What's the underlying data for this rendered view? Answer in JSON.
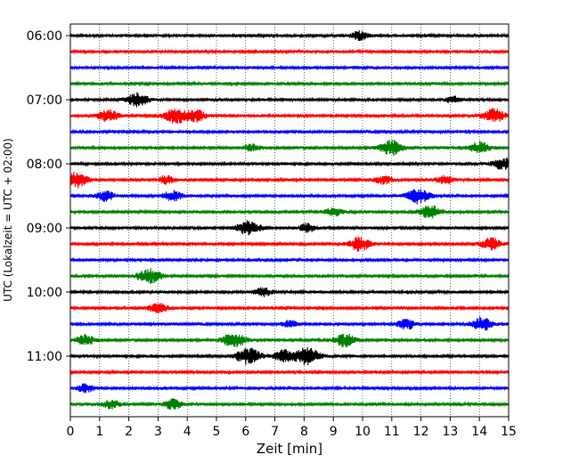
{
  "chart_data": {
    "type": "line",
    "title": "",
    "xlabel": "Zeit  [min]",
    "ylabel": "UTC (Lokalzeit = UTC + 02:00)",
    "xlim": [
      0,
      15
    ],
    "x_ticks": [
      0,
      1,
      2,
      3,
      4,
      5,
      6,
      7,
      8,
      9,
      10,
      11,
      12,
      13,
      14,
      15
    ],
    "x_tick_labels": [
      "0",
      "1",
      "2",
      "3",
      "4",
      "5",
      "6",
      "7",
      "8",
      "9",
      "10",
      "11",
      "12",
      "13",
      "14",
      "15"
    ],
    "y_tick_labels": [
      {
        "label": "06:00",
        "trace_index": 0
      },
      {
        "label": "07:00",
        "trace_index": 4
      },
      {
        "label": "08:00",
        "trace_index": 8
      },
      {
        "label": "09:00",
        "trace_index": 12
      },
      {
        "label": "10:00",
        "trace_index": 16
      },
      {
        "label": "11:00",
        "trace_index": 20
      }
    ],
    "grid": "vertical dotted lines at each minute",
    "trace_minutes": 15,
    "trace_count": 24,
    "colors": [
      "#000000",
      "#ff0000",
      "#0000ff",
      "#008000"
    ],
    "traces": [
      {
        "start": "06:00",
        "color": "#000000",
        "bursts": [
          [
            9.9,
            0.5
          ]
        ]
      },
      {
        "start": "06:15",
        "color": "#ff0000",
        "bursts": []
      },
      {
        "start": "06:30",
        "color": "#0000ff",
        "bursts": []
      },
      {
        "start": "06:45",
        "color": "#008000",
        "bursts": []
      },
      {
        "start": "07:00",
        "color": "#000000",
        "bursts": [
          [
            2.3,
            0.8
          ],
          [
            13.1,
            0.4
          ]
        ]
      },
      {
        "start": "07:15",
        "color": "#ff0000",
        "bursts": [
          [
            1.3,
            0.7
          ],
          [
            3.6,
            0.9
          ],
          [
            4.3,
            0.7
          ],
          [
            14.5,
            0.8
          ]
        ]
      },
      {
        "start": "07:30",
        "color": "#0000ff",
        "bursts": []
      },
      {
        "start": "07:45",
        "color": "#008000",
        "bursts": [
          [
            6.2,
            0.4
          ],
          [
            11.0,
            0.9
          ],
          [
            14.0,
            0.7
          ]
        ]
      },
      {
        "start": "08:00",
        "color": "#000000",
        "bursts": [
          [
            14.8,
            0.7
          ]
        ]
      },
      {
        "start": "08:15",
        "color": "#ff0000",
        "bursts": [
          [
            0.2,
            0.9
          ],
          [
            3.3,
            0.5
          ],
          [
            10.7,
            0.5
          ],
          [
            12.8,
            0.5
          ]
        ]
      },
      {
        "start": "08:30",
        "color": "#0000ff",
        "bursts": [
          [
            1.2,
            0.6
          ],
          [
            3.5,
            0.6
          ],
          [
            11.9,
            0.9
          ]
        ]
      },
      {
        "start": "08:45",
        "color": "#008000",
        "bursts": [
          [
            9.0,
            0.5
          ],
          [
            12.3,
            0.8
          ]
        ]
      },
      {
        "start": "09:00",
        "color": "#000000",
        "bursts": [
          [
            6.1,
            0.9
          ],
          [
            8.1,
            0.5
          ]
        ]
      },
      {
        "start": "09:15",
        "color": "#ff0000",
        "bursts": [
          [
            9.9,
            0.8
          ],
          [
            14.4,
            0.7
          ]
        ]
      },
      {
        "start": "09:30",
        "color": "#0000ff",
        "bursts": []
      },
      {
        "start": "09:45",
        "color": "#008000",
        "bursts": [
          [
            2.7,
            0.9
          ]
        ]
      },
      {
        "start": "10:00",
        "color": "#000000",
        "bursts": [
          [
            6.6,
            0.5
          ]
        ]
      },
      {
        "start": "10:15",
        "color": "#ff0000",
        "bursts": [
          [
            3.0,
            0.6
          ]
        ]
      },
      {
        "start": "10:30",
        "color": "#0000ff",
        "bursts": [
          [
            7.5,
            0.4
          ],
          [
            11.5,
            0.6
          ],
          [
            14.1,
            0.8
          ]
        ]
      },
      {
        "start": "10:45",
        "color": "#008000",
        "bursts": [
          [
            0.5,
            0.6
          ],
          [
            5.6,
            0.9
          ],
          [
            9.4,
            0.8
          ]
        ]
      },
      {
        "start": "11:00",
        "color": "#000000",
        "bursts": [
          [
            6.1,
            1.0
          ],
          [
            7.3,
            0.7
          ],
          [
            8.1,
            1.0
          ]
        ]
      },
      {
        "start": "11:15",
        "color": "#ff0000",
        "bursts": []
      },
      {
        "start": "11:30",
        "color": "#0000ff",
        "bursts": [
          [
            0.5,
            0.5
          ]
        ]
      },
      {
        "start": "11:45",
        "color": "#008000",
        "bursts": [
          [
            1.4,
            0.5
          ],
          [
            3.5,
            0.6
          ]
        ]
      }
    ]
  }
}
